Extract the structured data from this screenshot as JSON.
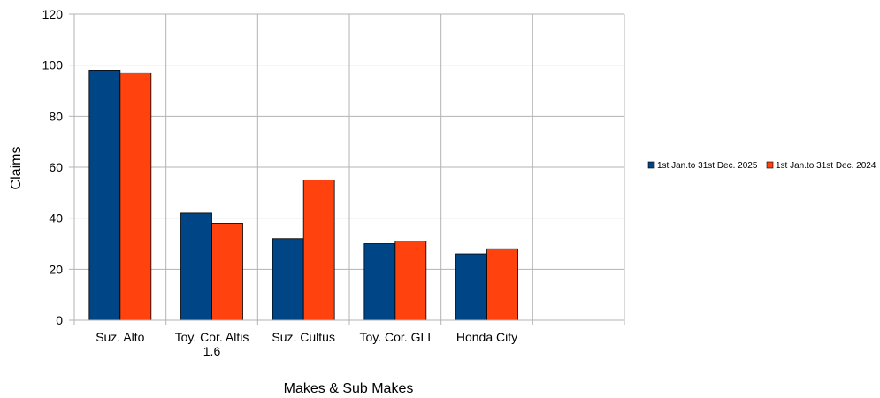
{
  "chart_data": {
    "type": "bar",
    "title": "",
    "xlabel": "Makes & Sub Makes",
    "ylabel": "Claims",
    "ylim": [
      0,
      120
    ],
    "yticks": [
      "0",
      "20",
      "40",
      "60",
      "80",
      "100",
      "120"
    ],
    "grid": true,
    "legend_position": "right",
    "categories": [
      [
        "Suz. Alto"
      ],
      [
        "Toy. Cor. Altis",
        "1.6"
      ],
      [
        "Suz. Cultus"
      ],
      [
        "Toy. Cor. GLI"
      ],
      [
        "Honda City"
      ],
      [
        ""
      ]
    ],
    "series": [
      {
        "name": "1st Jan.to 31st Dec. 2025",
        "color": "#004586",
        "values": [
          98,
          42,
          32,
          30,
          26,
          null
        ]
      },
      {
        "name": "1st Jan.to 31st Dec. 2024",
        "color": "#ff420e",
        "values": [
          97,
          38,
          55,
          31,
          28,
          null
        ]
      }
    ]
  }
}
